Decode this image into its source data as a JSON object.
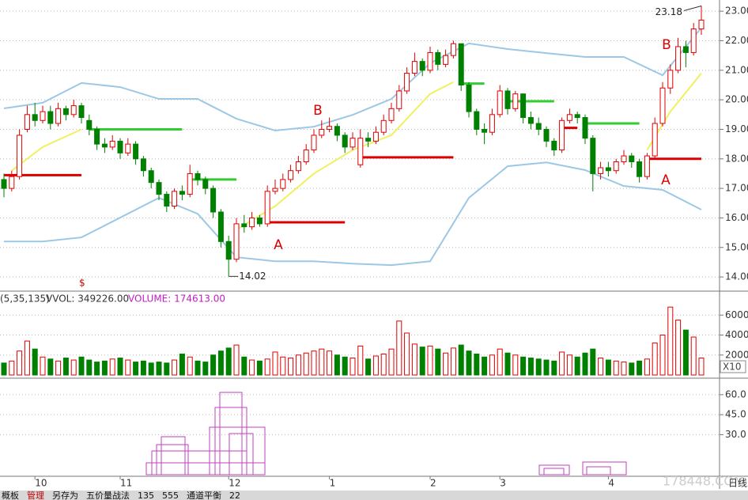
{
  "chart_data": [
    {
      "type": "candlestick",
      "categories": [
        null,
        null,
        null,
        null,
        "10",
        null,
        null,
        null,
        null,
        null,
        null,
        null,
        null,
        null,
        null,
        "11",
        null,
        null,
        null,
        null,
        null,
        null,
        null,
        null,
        null,
        null,
        null,
        null,
        null,
        "12",
        null,
        null,
        null,
        null,
        null,
        null,
        null,
        null,
        null,
        null,
        null,
        null,
        "1",
        null,
        null,
        null,
        null,
        null,
        null,
        null,
        null,
        null,
        null,
        null,
        null,
        "2",
        null,
        null,
        null,
        null,
        null,
        null,
        null,
        null,
        "3",
        null,
        null,
        null,
        null,
        null,
        null,
        null,
        null,
        null,
        null,
        null,
        null,
        null,
        "4",
        null,
        null,
        null,
        null,
        null,
        null,
        null,
        null,
        null,
        null,
        null,
        null
      ],
      "ohlc": [
        [
          17.3,
          17.5,
          16.7,
          17.0
        ],
        [
          17.0,
          17.6,
          16.9,
          17.4
        ],
        [
          17.4,
          19.0,
          17.3,
          18.8
        ],
        [
          19.0,
          19.8,
          18.9,
          19.5
        ],
        [
          19.5,
          19.9,
          19.1,
          19.3
        ],
        [
          19.3,
          19.8,
          19.2,
          19.6
        ],
        [
          19.6,
          19.8,
          19.0,
          19.2
        ],
        [
          19.2,
          19.9,
          19.1,
          19.7
        ],
        [
          19.7,
          19.8,
          19.3,
          19.5
        ],
        [
          19.5,
          20.0,
          19.4,
          19.8
        ],
        [
          19.8,
          19.9,
          19.2,
          19.4
        ],
        [
          19.3,
          19.5,
          18.8,
          19.0
        ],
        [
          19.0,
          19.1,
          18.3,
          18.5
        ],
        [
          18.5,
          18.7,
          18.2,
          18.4
        ],
        [
          18.4,
          18.8,
          18.3,
          18.6
        ],
        [
          18.6,
          18.7,
          18.0,
          18.2
        ],
        [
          18.2,
          18.7,
          18.1,
          18.5
        ],
        [
          18.5,
          18.6,
          17.8,
          18.0
        ],
        [
          18.0,
          18.1,
          17.4,
          17.6
        ],
        [
          17.6,
          17.7,
          17.0,
          17.2
        ],
        [
          17.2,
          17.3,
          16.6,
          16.8
        ],
        [
          16.8,
          16.9,
          16.2,
          16.4
        ],
        [
          16.4,
          17.0,
          16.3,
          16.9
        ],
        [
          16.9,
          17.1,
          16.6,
          16.8
        ],
        [
          16.8,
          17.8,
          16.7,
          17.5
        ],
        [
          17.5,
          17.6,
          17.1,
          17.3
        ],
        [
          17.3,
          17.4,
          16.8,
          17.0
        ],
        [
          17.0,
          17.1,
          16.0,
          16.2
        ],
        [
          16.2,
          16.3,
          15.0,
          15.2
        ],
        [
          15.2,
          15.4,
          14.02,
          14.6
        ],
        [
          14.6,
          16.0,
          14.5,
          15.8
        ],
        [
          15.8,
          16.1,
          15.5,
          15.7
        ],
        [
          15.7,
          16.2,
          15.6,
          16.0
        ],
        [
          16.0,
          16.1,
          15.7,
          15.8
        ],
        [
          15.8,
          17.1,
          15.7,
          16.9
        ],
        [
          16.9,
          17.3,
          16.8,
          17.0
        ],
        [
          17.0,
          17.5,
          16.9,
          17.3
        ],
        [
          17.3,
          17.8,
          17.2,
          17.6
        ],
        [
          17.6,
          18.1,
          17.5,
          17.9
        ],
        [
          17.9,
          18.5,
          17.8,
          18.3
        ],
        [
          18.3,
          19.0,
          18.2,
          18.8
        ],
        [
          18.8,
          19.3,
          18.7,
          19.0
        ],
        [
          19.0,
          19.4,
          18.9,
          19.1
        ],
        [
          19.1,
          19.2,
          18.6,
          18.8
        ],
        [
          18.8,
          18.9,
          18.2,
          18.4
        ],
        [
          18.4,
          18.9,
          18.3,
          18.7
        ],
        [
          17.8,
          19.0,
          17.7,
          18.7
        ],
        [
          18.7,
          18.9,
          18.4,
          18.6
        ],
        [
          18.6,
          19.1,
          18.5,
          18.9
        ],
        [
          18.9,
          19.5,
          18.8,
          19.3
        ],
        [
          19.3,
          19.9,
          19.2,
          19.7
        ],
        [
          19.7,
          20.5,
          19.6,
          20.3
        ],
        [
          20.3,
          21.1,
          20.2,
          20.9
        ],
        [
          20.9,
          21.6,
          20.8,
          21.3
        ],
        [
          21.3,
          21.4,
          20.8,
          21.0
        ],
        [
          21.0,
          21.8,
          20.9,
          21.6
        ],
        [
          21.6,
          21.7,
          21.0,
          21.2
        ],
        [
          21.2,
          21.7,
          21.1,
          21.5
        ],
        [
          21.5,
          22.0,
          21.4,
          21.9
        ],
        [
          21.9,
          21.9,
          20.3,
          20.5
        ],
        [
          20.5,
          20.6,
          19.4,
          19.6
        ],
        [
          19.6,
          19.7,
          18.8,
          19.0
        ],
        [
          19.0,
          19.2,
          18.5,
          18.9
        ],
        [
          18.9,
          19.7,
          18.8,
          19.5
        ],
        [
          19.5,
          20.5,
          19.4,
          20.3
        ],
        [
          20.3,
          20.4,
          19.5,
          19.7
        ],
        [
          19.7,
          20.3,
          19.6,
          20.2
        ],
        [
          20.2,
          20.2,
          19.2,
          19.4
        ],
        [
          19.4,
          19.6,
          19.0,
          19.2
        ],
        [
          19.2,
          19.4,
          18.8,
          19.0
        ],
        [
          19.0,
          19.1,
          18.4,
          18.6
        ],
        [
          18.6,
          18.7,
          18.1,
          18.3
        ],
        [
          18.3,
          19.4,
          18.2,
          19.3
        ],
        [
          19.3,
          19.7,
          19.2,
          19.5
        ],
        [
          19.5,
          19.6,
          19.2,
          19.4
        ],
        [
          19.4,
          19.5,
          18.5,
          18.7
        ],
        [
          18.7,
          18.8,
          16.9,
          17.5
        ],
        [
          17.5,
          17.9,
          17.3,
          17.7
        ],
        [
          17.7,
          17.9,
          17.4,
          17.6
        ],
        [
          17.6,
          18.0,
          17.5,
          17.9
        ],
        [
          17.9,
          18.3,
          17.8,
          18.1
        ],
        [
          18.1,
          18.2,
          17.7,
          17.9
        ],
        [
          17.9,
          18.0,
          17.2,
          17.4
        ],
        [
          17.4,
          18.2,
          17.3,
          18.1
        ],
        [
          18.1,
          19.4,
          18.0,
          19.2
        ],
        [
          19.2,
          20.6,
          19.1,
          20.4
        ],
        [
          20.4,
          21.2,
          20.2,
          21.0
        ],
        [
          21.0,
          22.1,
          20.9,
          21.8
        ],
        [
          21.8,
          22.0,
          21.1,
          21.6
        ],
        [
          21.6,
          22.6,
          21.5,
          22.4
        ],
        [
          22.4,
          23.18,
          22.2,
          22.7
        ]
      ],
      "up_color": "#e00000",
      "down_color": "#008000",
      "lines": [
        {
          "color": "#9cc8e6",
          "x": [
            0,
            5,
            10,
            15,
            20,
            25,
            30,
            35,
            40,
            45,
            50,
            55,
            60,
            65,
            70,
            75,
            80,
            85,
            90
          ],
          "values": [
            19.71,
            19.9,
            20.57,
            20.43,
            20.03,
            20.03,
            19.36,
            18.96,
            19.09,
            19.49,
            20.03,
            21.24,
            21.91,
            21.72,
            21.58,
            21.45,
            21.45,
            20.83,
            22.44
          ]
        },
        {
          "color": "#9cc8e6",
          "x": [
            0,
            5,
            10,
            15,
            20,
            25,
            30,
            35,
            40,
            45,
            50,
            55,
            60,
            65,
            70,
            75,
            80,
            85,
            90
          ],
          "values": [
            15.2,
            15.2,
            15.34,
            16.01,
            16.68,
            16.14,
            14.67,
            14.53,
            14.53,
            14.45,
            14.4,
            14.53,
            16.68,
            17.75,
            17.88,
            17.62,
            17.08,
            16.95,
            16.28
          ]
        },
        {
          "color": "#f0f060",
          "x": [
            1,
            5,
            10,
            11,
            30,
            35,
            40,
            45,
            50,
            55,
            58,
            59,
            83,
            86,
            90
          ],
          "values": [
            17.6,
            18.4,
            19.0,
            null,
            15.6,
            16.4,
            17.5,
            18.3,
            18.8,
            20.2,
            20.6,
            null,
            18.3,
            19.6,
            20.9
          ]
        }
      ],
      "levels": [
        {
          "value": 17.45,
          "color": "#dd0000",
          "x": [
            0,
            10
          ]
        },
        {
          "value": 19.0,
          "color": "#33cc33",
          "x": [
            11,
            23
          ]
        },
        {
          "value": 17.3,
          "color": "#33cc33",
          "x": [
            24,
            30
          ]
        },
        {
          "value": 15.85,
          "color": "#dd0000",
          "x": [
            34,
            44
          ]
        },
        {
          "value": 18.05,
          "color": "#dd0000",
          "x": [
            46,
            58
          ]
        },
        {
          "value": 20.55,
          "color": "#33cc33",
          "x": [
            59,
            62
          ]
        },
        {
          "value": 19.95,
          "color": "#33cc33",
          "x": [
            65,
            71
          ]
        },
        {
          "value": 19.05,
          "color": "#dd0000",
          "x": [
            72,
            74
          ]
        },
        {
          "value": 19.2,
          "color": "#33cc33",
          "x": [
            75,
            82
          ]
        },
        {
          "value": 18.0,
          "color": "#dd0000",
          "x": [
            83,
            90
          ]
        }
      ],
      "annotations": [
        {
          "text": "A",
          "x": 35.4,
          "y": 15.07
        },
        {
          "text": "B",
          "x": 40.5,
          "y": 19.63
        },
        {
          "text": "B",
          "x": 85.5,
          "y": 21.85
        },
        {
          "text": "A",
          "x": 85.4,
          "y": 17.27
        }
      ],
      "low": 14.02,
      "high": 23.18,
      "marker": "$",
      "ylim": [
        13.52,
        23.38
      ],
      "yticks": [
        {
          "value": 23,
          "label": "23.00"
        },
        {
          "value": 22,
          "label": "22.00"
        },
        {
          "value": 21,
          "label": "21.00"
        },
        {
          "value": 20,
          "label": "20.00"
        },
        {
          "value": 19,
          "label": "19.00"
        },
        {
          "value": 18,
          "label": "18.00"
        },
        {
          "value": 17,
          "label": "17.00"
        },
        {
          "value": 16,
          "label": "16.00"
        },
        {
          "value": 15,
          "label": "15.00"
        },
        {
          "value": 14,
          "label": "14.00"
        }
      ],
      "grid": true
    },
    {
      "type": "bar",
      "title": "(5,35,135)",
      "legend": [
        "VVOL: 349226.00",
        "VOLUME: 174613.00"
      ],
      "unit_label": "X10",
      "values": [
        1200,
        1400,
        2400,
        3400,
        2600,
        1800,
        1600,
        1400,
        1700,
        1500,
        1800,
        1500,
        1300,
        1400,
        1600,
        1700,
        1500,
        1300,
        1400,
        1200,
        1300,
        1200,
        1500,
        2100,
        1800,
        1400,
        1300,
        2000,
        2400,
        2700,
        3000,
        1800,
        1500,
        1400,
        1600,
        2300,
        1800,
        1700,
        2000,
        2200,
        2400,
        2600,
        2400,
        2000,
        1800,
        1700,
        2900,
        1600,
        1900,
        2100,
        2600,
        5400,
        4200,
        3100,
        2800,
        2900,
        2600,
        2200,
        2700,
        3000,
        2400,
        2100,
        1800,
        2000,
        2600,
        2200,
        2000,
        1800,
        1700,
        1600,
        1500,
        1400,
        2300,
        2000,
        1800,
        2200,
        2600,
        1700,
        1500,
        1400,
        1300,
        1200,
        1400,
        1600,
        3200,
        4000,
        6800,
        5500,
        4500,
        3800,
        1700
      ],
      "ylim": [
        0,
        8000
      ],
      "yticks": [
        6000,
        4000,
        2000
      ],
      "grid": true
    },
    {
      "type": "distribution",
      "ylim": [
        0,
        70.6
      ],
      "yticks": [
        {
          "value": 60,
          "label": "60.0"
        },
        {
          "value": 45,
          "label": "45.0"
        },
        {
          "value": 30,
          "label": "30.0"
        }
      ],
      "grid": true
    }
  ],
  "toolbar": [
    "概板",
    "管理",
    "另存为",
    "五价量战法",
    "135",
    "555",
    "通道平衡",
    "22"
  ],
  "period": "日线",
  "watermark": "178448.COM"
}
